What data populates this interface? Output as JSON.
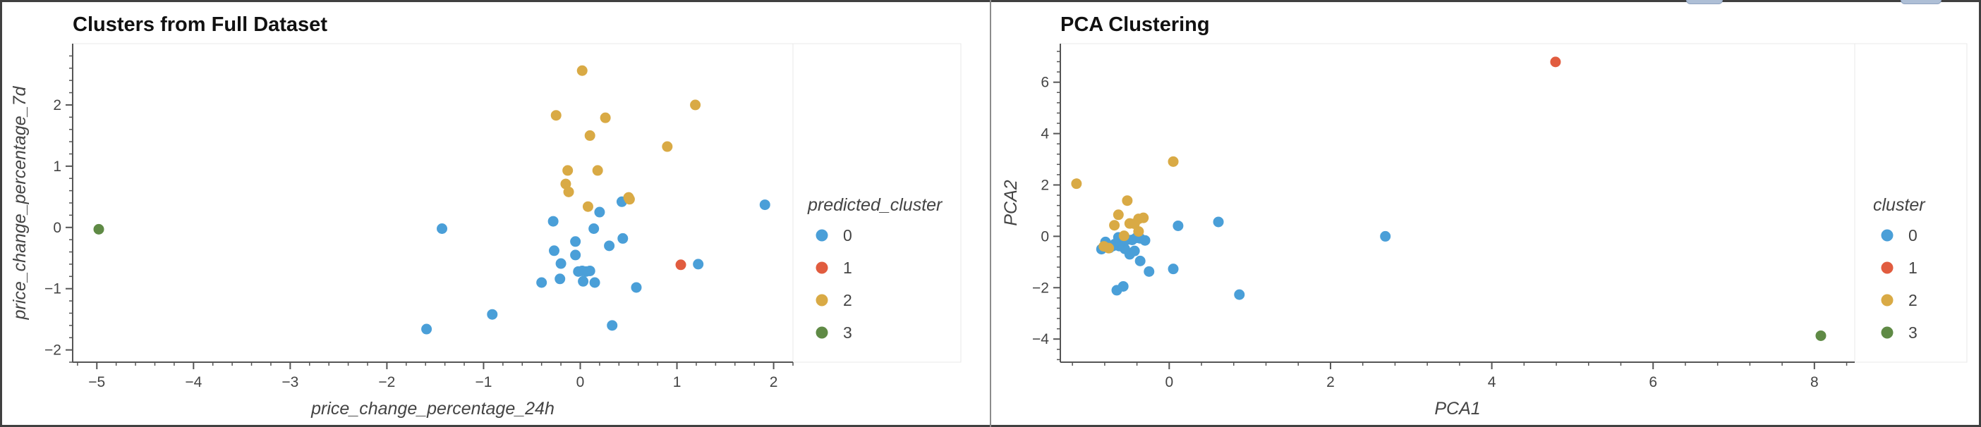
{
  "colors": {
    "cluster_0": "#4a9fd8",
    "cluster_1": "#e15c3f",
    "cluster_2": "#d9aa45",
    "cluster_3": "#5f8a45"
  },
  "chart_data": [
    {
      "type": "scatter",
      "title": "Clusters from Full Dataset",
      "xlabel": "price_change_percentage_24h",
      "ylabel": "price_change_percentage_7d",
      "xlim": [
        -5.25,
        2.2
      ],
      "ylim": [
        -2.2,
        3.0
      ],
      "xticks": [
        "−5",
        "−4",
        "−3",
        "−2",
        "−1",
        "0",
        "1",
        "2"
      ],
      "yticks": [
        "−2",
        "−1",
        "0",
        "1",
        "2"
      ],
      "legend": {
        "title": "predicted_cluster",
        "entries": [
          "0",
          "1",
          "2",
          "3"
        ],
        "position": "right"
      },
      "grid": false,
      "series": [
        {
          "name": "0",
          "color": "#4a9fd8",
          "points": [
            [
              1.91,
              0.37
            ],
            [
              1.22,
              -0.6
            ],
            [
              0.58,
              -0.98
            ],
            [
              0.43,
              0.42
            ],
            [
              0.44,
              -0.18
            ],
            [
              0.3,
              -0.3
            ],
            [
              0.2,
              0.25
            ],
            [
              0.14,
              -0.02
            ],
            [
              0.1,
              -0.71
            ],
            [
              0.06,
              -0.72
            ],
            [
              0.02,
              -0.71
            ],
            [
              0.03,
              -0.88
            ],
            [
              0.15,
              -0.9
            ],
            [
              -0.05,
              -0.23
            ],
            [
              -0.05,
              -0.45
            ],
            [
              -0.2,
              -0.59
            ],
            [
              -0.28,
              0.1
            ],
            [
              -0.27,
              -0.38
            ],
            [
              -0.21,
              -0.84
            ],
            [
              -0.4,
              -0.9
            ],
            [
              0.33,
              -1.6
            ],
            [
              -0.91,
              -1.42
            ],
            [
              -1.43,
              -0.02
            ],
            [
              -1.59,
              -1.66
            ],
            [
              -0.02,
              -0.72
            ]
          ]
        },
        {
          "name": "1",
          "color": "#e15c3f",
          "points": [
            [
              1.04,
              -0.61
            ]
          ]
        },
        {
          "name": "2",
          "color": "#d9aa45",
          "points": [
            [
              0.02,
              2.56
            ],
            [
              -0.25,
              1.83
            ],
            [
              0.26,
              1.79
            ],
            [
              0.1,
              1.5
            ],
            [
              1.19,
              2.0
            ],
            [
              0.9,
              1.32
            ],
            [
              -0.13,
              0.93
            ],
            [
              0.18,
              0.93
            ],
            [
              -0.15,
              0.71
            ],
            [
              -0.12,
              0.58
            ],
            [
              0.08,
              0.34
            ],
            [
              0.5,
              0.49
            ],
            [
              0.51,
              0.46
            ]
          ]
        },
        {
          "name": "3",
          "color": "#5f8a45",
          "points": [
            [
              -4.98,
              -0.03
            ]
          ]
        }
      ]
    },
    {
      "type": "scatter",
      "title": "PCA Clustering",
      "xlabel": "PCA1",
      "ylabel": "PCA2",
      "xlim": [
        -1.35,
        8.5
      ],
      "ylim": [
        -4.9,
        7.5
      ],
      "xticks": [
        "0",
        "2",
        "4",
        "6",
        "8"
      ],
      "yticks": [
        "−4",
        "−2",
        "0",
        "2",
        "4",
        "6"
      ],
      "legend": {
        "title": "cluster",
        "entries": [
          "0",
          "1",
          "2",
          "3"
        ],
        "position": "right"
      },
      "grid": false,
      "series": [
        {
          "name": "0",
          "color": "#4a9fd8",
          "points": [
            [
              2.68,
              0.0
            ],
            [
              0.87,
              -2.27
            ],
            [
              0.61,
              0.56
            ],
            [
              0.11,
              0.41
            ],
            [
              0.05,
              -1.27
            ],
            [
              -0.25,
              -1.37
            ],
            [
              -0.36,
              -0.96
            ],
            [
              -0.43,
              -0.57
            ],
            [
              -0.49,
              -0.7
            ],
            [
              -0.55,
              -0.49
            ],
            [
              -0.62,
              -0.38
            ],
            [
              -0.68,
              -0.31
            ],
            [
              -0.74,
              -0.45
            ],
            [
              -0.79,
              -0.22
            ],
            [
              -0.84,
              -0.5
            ],
            [
              -0.6,
              -0.21
            ],
            [
              -0.52,
              -0.13
            ],
            [
              -0.46,
              -0.14
            ],
            [
              -0.41,
              -0.06
            ],
            [
              -0.36,
              -0.08
            ],
            [
              -0.3,
              -0.16
            ],
            [
              -0.63,
              -0.04
            ],
            [
              -0.57,
              -1.95
            ],
            [
              -0.65,
              -2.1
            ],
            [
              -0.7,
              -0.38
            ]
          ]
        },
        {
          "name": "1",
          "color": "#e15c3f",
          "points": [
            [
              4.79,
              6.79
            ]
          ]
        },
        {
          "name": "2",
          "color": "#d9aa45",
          "points": [
            [
              0.05,
              2.91
            ],
            [
              -1.15,
              2.05
            ],
            [
              -0.52,
              1.39
            ],
            [
              -0.63,
              0.84
            ],
            [
              -0.32,
              0.72
            ],
            [
              -0.38,
              0.68
            ],
            [
              -0.68,
              0.43
            ],
            [
              -0.49,
              0.5
            ],
            [
              -0.43,
              0.49
            ],
            [
              -0.38,
              0.19
            ],
            [
              -0.56,
              0.02
            ],
            [
              -0.81,
              -0.39
            ],
            [
              -0.75,
              -0.46
            ]
          ]
        },
        {
          "name": "3",
          "color": "#5f8a45",
          "points": [
            [
              8.08,
              -3.87
            ]
          ]
        }
      ]
    }
  ]
}
